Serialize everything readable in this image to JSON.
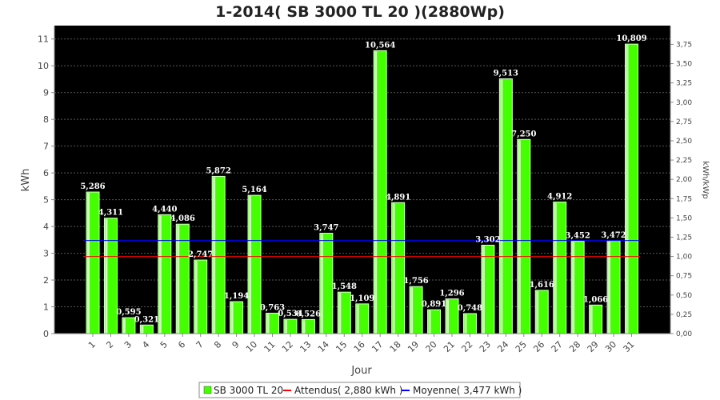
{
  "chart_data": {
    "type": "bar",
    "title": "1-2014( SB 3000 TL 20 )(2880Wp)",
    "xlabel": "Jour",
    "ylabel": "kWh",
    "y2label": "kWh/kWp",
    "ylim": [
      0,
      11.5
    ],
    "y2lim": [
      0,
      3.9931
    ],
    "yticks": [
      "0",
      "1",
      "2",
      "3",
      "4",
      "5",
      "6",
      "7",
      "8",
      "9",
      "10",
      "11"
    ],
    "y2ticks": [
      "0,00",
      "0,25",
      "0,50",
      "0,75",
      "1,00",
      "1,25",
      "1,50",
      "1,75",
      "2,00",
      "2,25",
      "2,50",
      "2,75",
      "3,00",
      "3,25",
      "3,50",
      "3,75"
    ],
    "grid": true,
    "legend_position": "bottom",
    "categories": [
      "1",
      "2",
      "3",
      "4",
      "5",
      "6",
      "7",
      "8",
      "9",
      "10",
      "11",
      "12",
      "13",
      "14",
      "15",
      "16",
      "17",
      "18",
      "19",
      "20",
      "21",
      "22",
      "23",
      "24",
      "25",
      "26",
      "27",
      "28",
      "29",
      "30",
      "31"
    ],
    "series": [
      {
        "name": "SB 3000 TL 20",
        "color": "#44ff00",
        "values": [
          5.286,
          4.311,
          0.595,
          0.321,
          4.44,
          4.086,
          2.747,
          5.872,
          1.194,
          5.164,
          0.763,
          0.534,
          0.526,
          3.747,
          1.548,
          1.109,
          10.564,
          4.891,
          1.756,
          0.891,
          1.296,
          0.748,
          3.302,
          9.513,
          7.25,
          1.616,
          4.912,
          3.452,
          1.066,
          3.472,
          10.809
        ],
        "labels": [
          "5,286",
          "4,311",
          "0,595",
          "0,321",
          "4,440",
          "4,086",
          "2,747",
          "5,872",
          "1,194",
          "5,164",
          "0,763",
          "0,534",
          "0,526",
          "3,747",
          "1,548",
          "1,109",
          "10,564",
          "4,891",
          "1,756",
          "0,891",
          "1,296",
          "0,748",
          "3,302",
          "9,513",
          "7,250",
          "1,616",
          "4,912",
          "3,452",
          "1,066",
          "3,472",
          "10,809"
        ]
      }
    ],
    "reference_lines": [
      {
        "name": "Attendus( 2,880 kWh )",
        "value": 2.88,
        "color": "#ff0000"
      },
      {
        "name": "Moyenne( 3,477 kWh )",
        "value": 3.477,
        "color": "#0000ff"
      }
    ],
    "plot_background": "#000000",
    "grid_color": "#555555"
  }
}
